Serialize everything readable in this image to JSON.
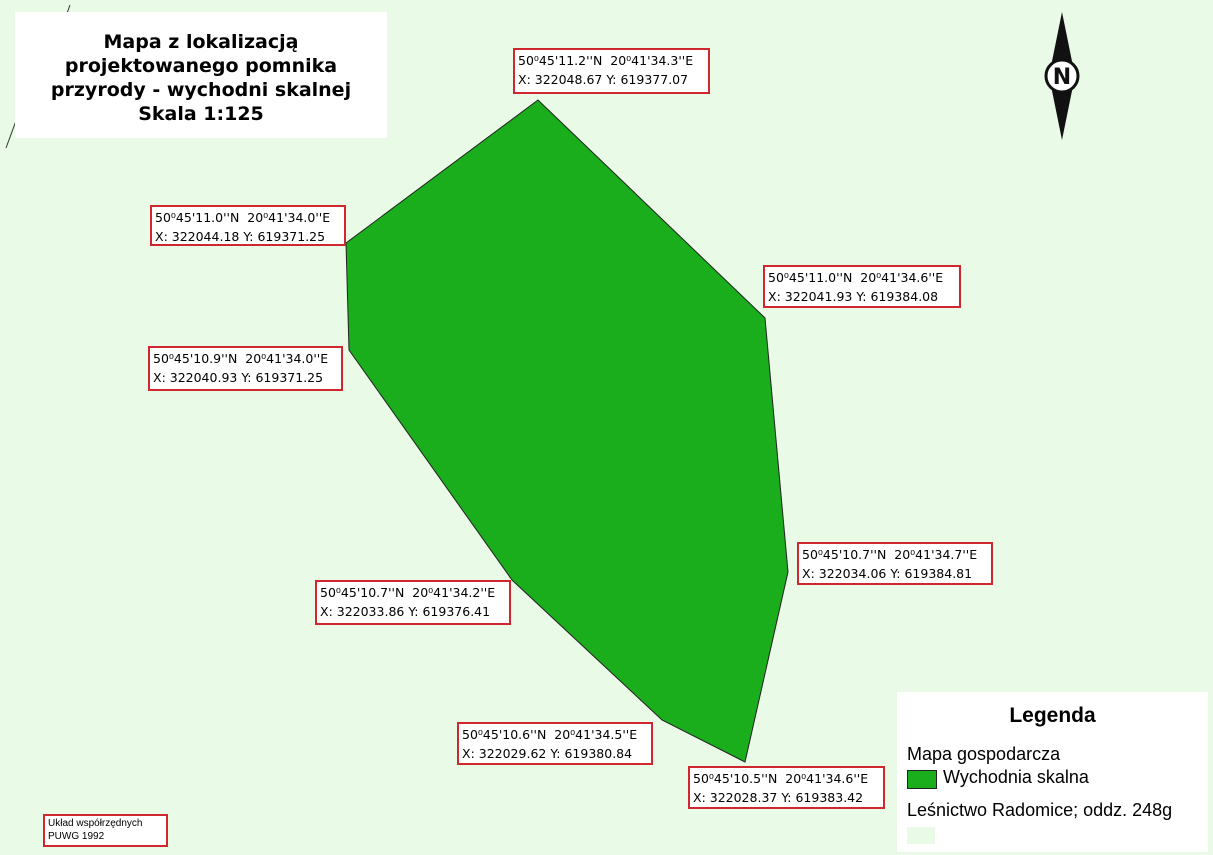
{
  "header": {
    "title": "Mapa z lokalizacją projektowanego pomnika przyrody - wychodni skalnej",
    "scale": "Skala 1:125"
  },
  "north_arrow": {
    "label": "N"
  },
  "labels": [
    {
      "dms": "50⁰45'11.2''N  20⁰41'34.3''E",
      "xy": "X: 322048.67 Y: 619377.07"
    },
    {
      "dms": "50⁰45'11.0''N  20⁰41'34.0''E",
      "xy": "X: 322044.18 Y: 619371.25"
    },
    {
      "dms": "50⁰45'11.0''N  20⁰41'34.6''E",
      "xy": "X: 322041.93 Y: 619384.08"
    },
    {
      "dms": "50⁰45'10.9''N  20⁰41'34.0''E",
      "xy": "X: 322040.93 Y: 619371.25"
    },
    {
      "dms": "50⁰45'10.7''N  20⁰41'34.7''E",
      "xy": "X: 322034.06 Y: 619384.81"
    },
    {
      "dms": "50⁰45'10.7''N  20⁰41'34.2''E",
      "xy": "X: 322033.86 Y: 619376.41"
    },
    {
      "dms": "50⁰45'10.6''N  20⁰41'34.5''E",
      "xy": "X: 322029.62 Y: 619380.84"
    },
    {
      "dms": "50⁰45'10.5''N  20⁰41'34.6''E",
      "xy": "X: 322028.37 Y: 619383.42"
    }
  ],
  "legend": {
    "title": "Legenda",
    "group": "Mapa gospodarcza",
    "items": [
      "Wychodnia skalna",
      "Leśnictwo Radomice; oddz. 248g"
    ]
  },
  "coordinate_system": [
    "Układ współrzędnych",
    "PUWG 1992"
  ]
}
